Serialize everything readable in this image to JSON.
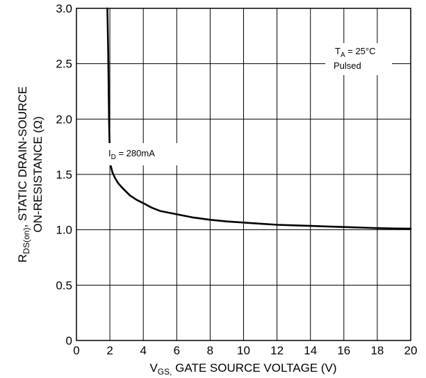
{
  "chart_data": {
    "type": "line",
    "title": "",
    "xlabel": {
      "main": "V",
      "sub": "GS,",
      "rest": " GATE SOURCE VOLTAGE (V)"
    },
    "ylabel": {
      "line1": {
        "main": "R",
        "sub": "DS(on)",
        "rest": ", STATIC DRAIN-SOURCE"
      },
      "line2": "ON-RESISTANCE (Ω)"
    },
    "xlim": [
      0,
      20
    ],
    "ylim": [
      0,
      3.0
    ],
    "x_ticks": [
      "0",
      "2",
      "4",
      "6",
      "8",
      "10",
      "12",
      "14",
      "16",
      "18",
      "20"
    ],
    "y_ticks": [
      "0",
      "0.5",
      "1.0",
      "1.5",
      "2.0",
      "2.5",
      "3.0"
    ],
    "grid": true,
    "series": [
      {
        "name": "",
        "x": [
          1.85,
          1.9,
          1.95,
          2.0,
          2.05,
          2.15,
          2.3,
          2.5,
          2.8,
          3.2,
          3.6,
          4.0,
          4.5,
          5.0,
          6.0,
          7.0,
          8.0,
          9.0,
          10.0,
          11.0,
          12.0,
          13.0,
          14.0,
          15.0,
          16.0,
          17.0,
          18.0,
          19.0,
          20.0
        ],
        "y": [
          3.05,
          2.6,
          2.0,
          1.65,
          1.58,
          1.52,
          1.47,
          1.42,
          1.37,
          1.31,
          1.27,
          1.24,
          1.2,
          1.17,
          1.14,
          1.11,
          1.09,
          1.075,
          1.065,
          1.055,
          1.045,
          1.04,
          1.035,
          1.03,
          1.025,
          1.02,
          1.015,
          1.012,
          1.01
        ]
      }
    ],
    "annotations": [
      {
        "id": "id-label",
        "main": "I",
        "sub": "D",
        "rest": " = 280mA"
      },
      {
        "id": "ta-label",
        "main": "T",
        "sub": "A",
        "rest": " = 25°C"
      },
      {
        "id": "pulsed-label",
        "text": "Pulsed"
      }
    ]
  }
}
